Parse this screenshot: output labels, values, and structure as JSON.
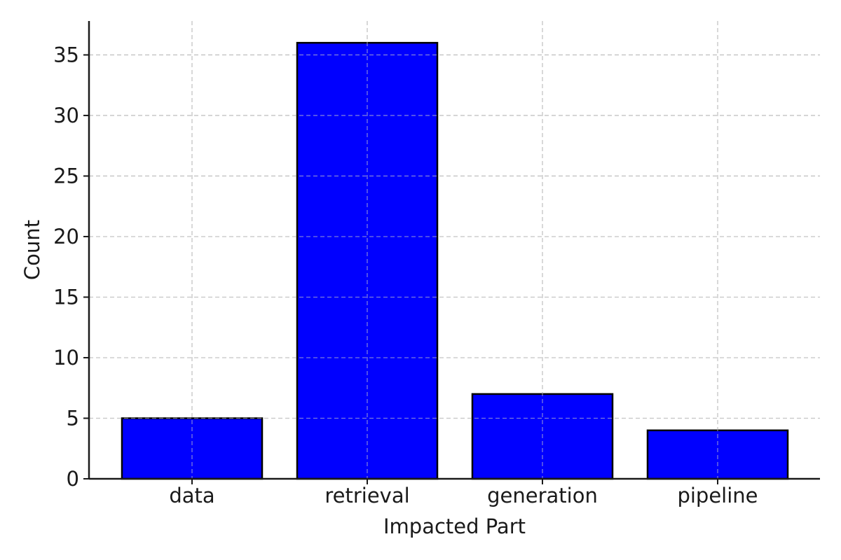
{
  "chart_data": {
    "type": "bar",
    "categories": [
      "data",
      "retrieval",
      "generation",
      "pipeline"
    ],
    "values": [
      5,
      36,
      7,
      4
    ],
    "title": "",
    "xlabel": "Impacted Part",
    "ylabel": "Count",
    "ylim": [
      0,
      37.8
    ],
    "yticks": [
      0,
      5,
      10,
      15,
      20,
      25,
      30,
      35
    ],
    "grid": true,
    "legend": "none"
  },
  "colors": {
    "bar_fill": "#0000ff",
    "bar_edge": "#000000",
    "grid": "#c8c8c8",
    "axis": "#1a1a1a"
  }
}
